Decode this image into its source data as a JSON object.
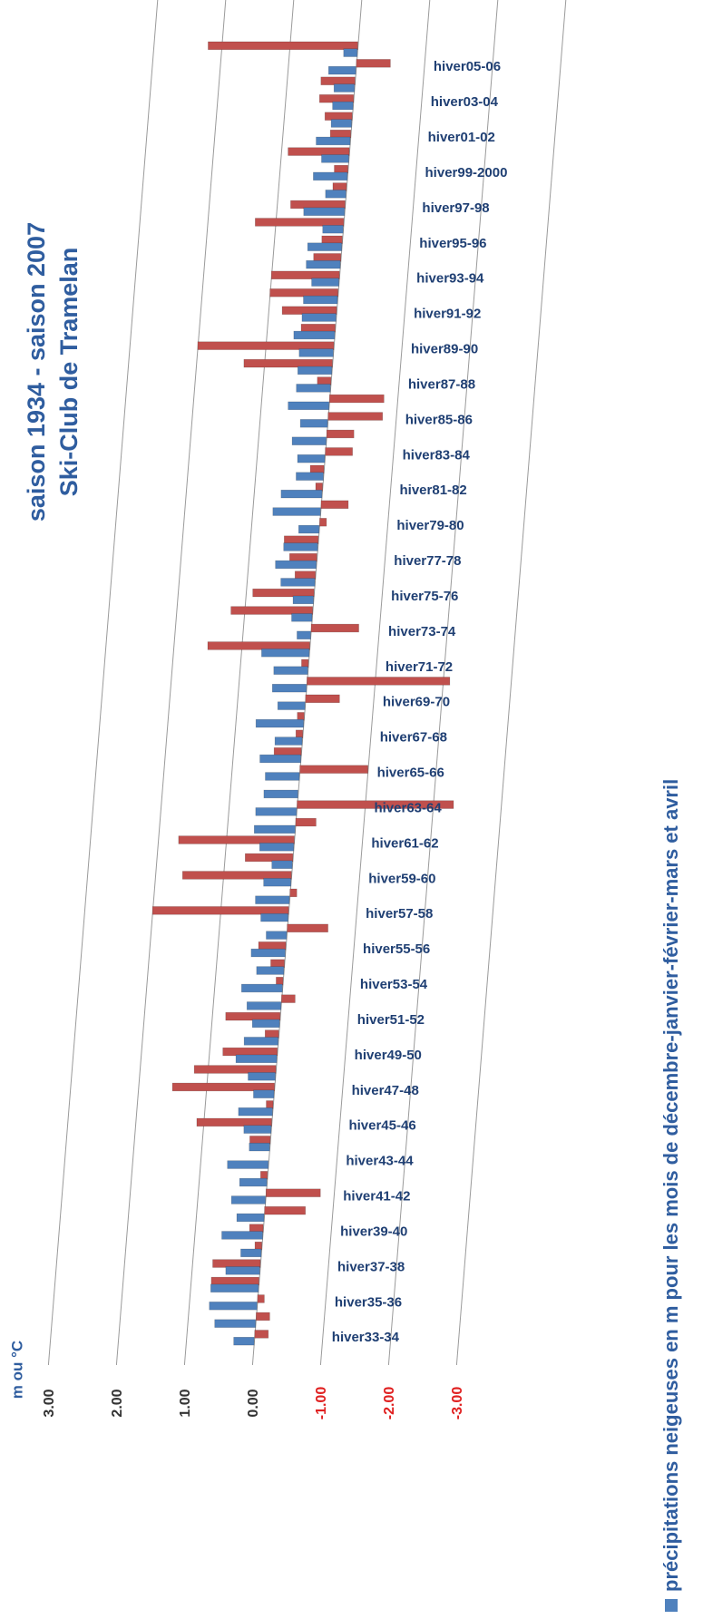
{
  "chart_data": {
    "type": "bar3d",
    "title": "saison 1934 - saison 2007",
    "subtitle": "Ski-Club de Tramelan",
    "y_axis_label": "m ou °C",
    "categories": [
      "hiver33-34",
      null,
      "hiver35-36",
      null,
      "hiver37-38",
      null,
      "hiver39-40",
      null,
      "hiver41-42",
      null,
      "hiver43-44",
      null,
      "hiver45-46",
      null,
      "hiver47-48",
      null,
      "hiver49-50",
      null,
      "hiver51-52",
      null,
      "hiver53-54",
      null,
      "hiver55-56",
      null,
      "hiver57-58",
      null,
      "hiver59-60",
      null,
      "hiver61-62",
      null,
      "hiver63-64",
      null,
      "hiver65-66",
      null,
      "hiver67-68",
      null,
      "hiver69-70",
      null,
      "hiver71-72",
      null,
      "hiver73-74",
      null,
      "hiver75-76",
      null,
      "hiver77-78",
      null,
      "hiver79-80",
      null,
      "hiver81-82",
      null,
      "hiver83-84",
      null,
      "hiver85-86",
      null,
      "hiver87-88",
      null,
      "hiver89-90",
      null,
      "hiver91-92",
      null,
      "hiver93-94",
      null,
      "hiver95-96",
      null,
      "hiver97-98",
      null,
      "hiver99-2000",
      null,
      "hiver01-02",
      null,
      "hiver03-04",
      null,
      "hiver05-06",
      null
    ],
    "series": [
      {
        "name": "précipitations neigeuses en m pour les mois de décembre-janvier-février-mars et avril",
        "color": "#4f81bd",
        "values": [
          0.3,
          0.6,
          0.7,
          0.7,
          0.5,
          0.3,
          0.6,
          0.4,
          0.5,
          0.4,
          0.6,
          0.3,
          0.4,
          0.5,
          0.3,
          0.4,
          0.6,
          0.5,
          0.4,
          0.5,
          0.6,
          0.4,
          0.5,
          0.3,
          0.4,
          0.5,
          0.4,
          0.3,
          0.5,
          0.6,
          0.6,
          0.5,
          0.5,
          0.6,
          0.4,
          0.7,
          0.4,
          0.5,
          0.5,
          0.7,
          0.2,
          0.3,
          0.3,
          0.5,
          0.6,
          0.5,
          0.3,
          0.7,
          0.6,
          0.4,
          0.4,
          0.5,
          0.4,
          0.6,
          0.5,
          0.5,
          0.5,
          0.6,
          0.5,
          0.5,
          0.4,
          0.5,
          0.5,
          0.3,
          0.6,
          0.3,
          0.5,
          0.4,
          0.5,
          0.3,
          0.3,
          0.3,
          0.4,
          0.2
        ]
      },
      {
        "color": "#c0504d",
        "values": [
          -0.2,
          -0.2,
          -0.1,
          0.7,
          0.7,
          0.1,
          0.2,
          -0.6,
          -0.8,
          0.1,
          0.0,
          0.3,
          1.1,
          0.1,
          1.5,
          1.2,
          0.8,
          0.2,
          0.8,
          -0.2,
          0.1,
          0.2,
          0.4,
          -0.6,
          2.0,
          -0.1,
          1.6,
          0.7,
          1.7,
          -0.3,
          -2.3,
          0.0,
          -1.0,
          0.4,
          0.1,
          0.1,
          -0.5,
          -2.1,
          0.1,
          1.5,
          -0.7,
          1.2,
          0.9,
          0.3,
          0.4,
          0.5,
          -0.1,
          -0.4,
          0.1,
          0.2,
          -0.4,
          -0.4,
          -0.8,
          -0.8,
          0.2,
          1.3,
          2.0,
          0.5,
          0.8,
          1.0,
          1.0,
          0.4,
          0.3,
          1.3,
          0.8,
          0.2,
          0.2,
          0.9,
          0.3,
          0.4,
          0.5,
          0.5,
          -0.5,
          2.2
        ]
      }
    ],
    "ylim": [
      -3,
      3
    ],
    "yticks": [
      {
        "value": 3,
        "label": "3.00"
      },
      {
        "value": 2,
        "label": "2.00"
      },
      {
        "value": 1,
        "label": "1.00"
      },
      {
        "value": 0,
        "label": "0.00"
      },
      {
        "value": -1,
        "label": "-1.00"
      },
      {
        "value": -2,
        "label": "-2.00"
      },
      {
        "value": -3,
        "label": "-3.00"
      }
    ],
    "negative_tick_color": "#e02020",
    "grid": true
  }
}
